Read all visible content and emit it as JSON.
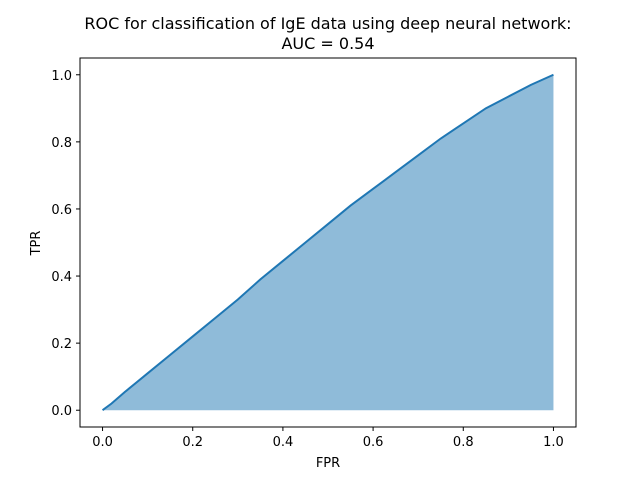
{
  "chart_data": {
    "type": "area",
    "title_lines": [
      "ROC for classification of IgE data using deep neural network:",
      "AUC = 0.54"
    ],
    "xlabel": "FPR",
    "ylabel": "TPR",
    "xlim": [
      -0.05,
      1.05
    ],
    "ylim": [
      -0.05,
      1.05
    ],
    "xticks": [
      0.0,
      0.2,
      0.4,
      0.6,
      0.8,
      1.0
    ],
    "xtick_labels": [
      "0.0",
      "0.2",
      "0.4",
      "0.6",
      "0.8",
      "1.0"
    ],
    "yticks": [
      0.0,
      0.2,
      0.4,
      0.6,
      0.8,
      1.0
    ],
    "ytick_labels": [
      "0.0",
      "0.2",
      "0.4",
      "0.6",
      "0.8",
      "1.0"
    ],
    "grid": false,
    "series": [
      {
        "x": [
          0.0,
          0.02,
          0.05,
          0.1,
          0.15,
          0.2,
          0.25,
          0.3,
          0.35,
          0.4,
          0.45,
          0.5,
          0.55,
          0.6,
          0.65,
          0.7,
          0.75,
          0.8,
          0.85,
          0.9,
          0.95,
          1.0
        ],
        "y": [
          0.0,
          0.02,
          0.055,
          0.11,
          0.165,
          0.22,
          0.275,
          0.33,
          0.39,
          0.445,
          0.5,
          0.555,
          0.61,
          0.66,
          0.71,
          0.76,
          0.81,
          0.855,
          0.9,
          0.935,
          0.97,
          1.0
        ],
        "line_color": "#1f77b4",
        "fill_color": "#1f77b4",
        "fill_opacity": 0.5
      }
    ]
  }
}
